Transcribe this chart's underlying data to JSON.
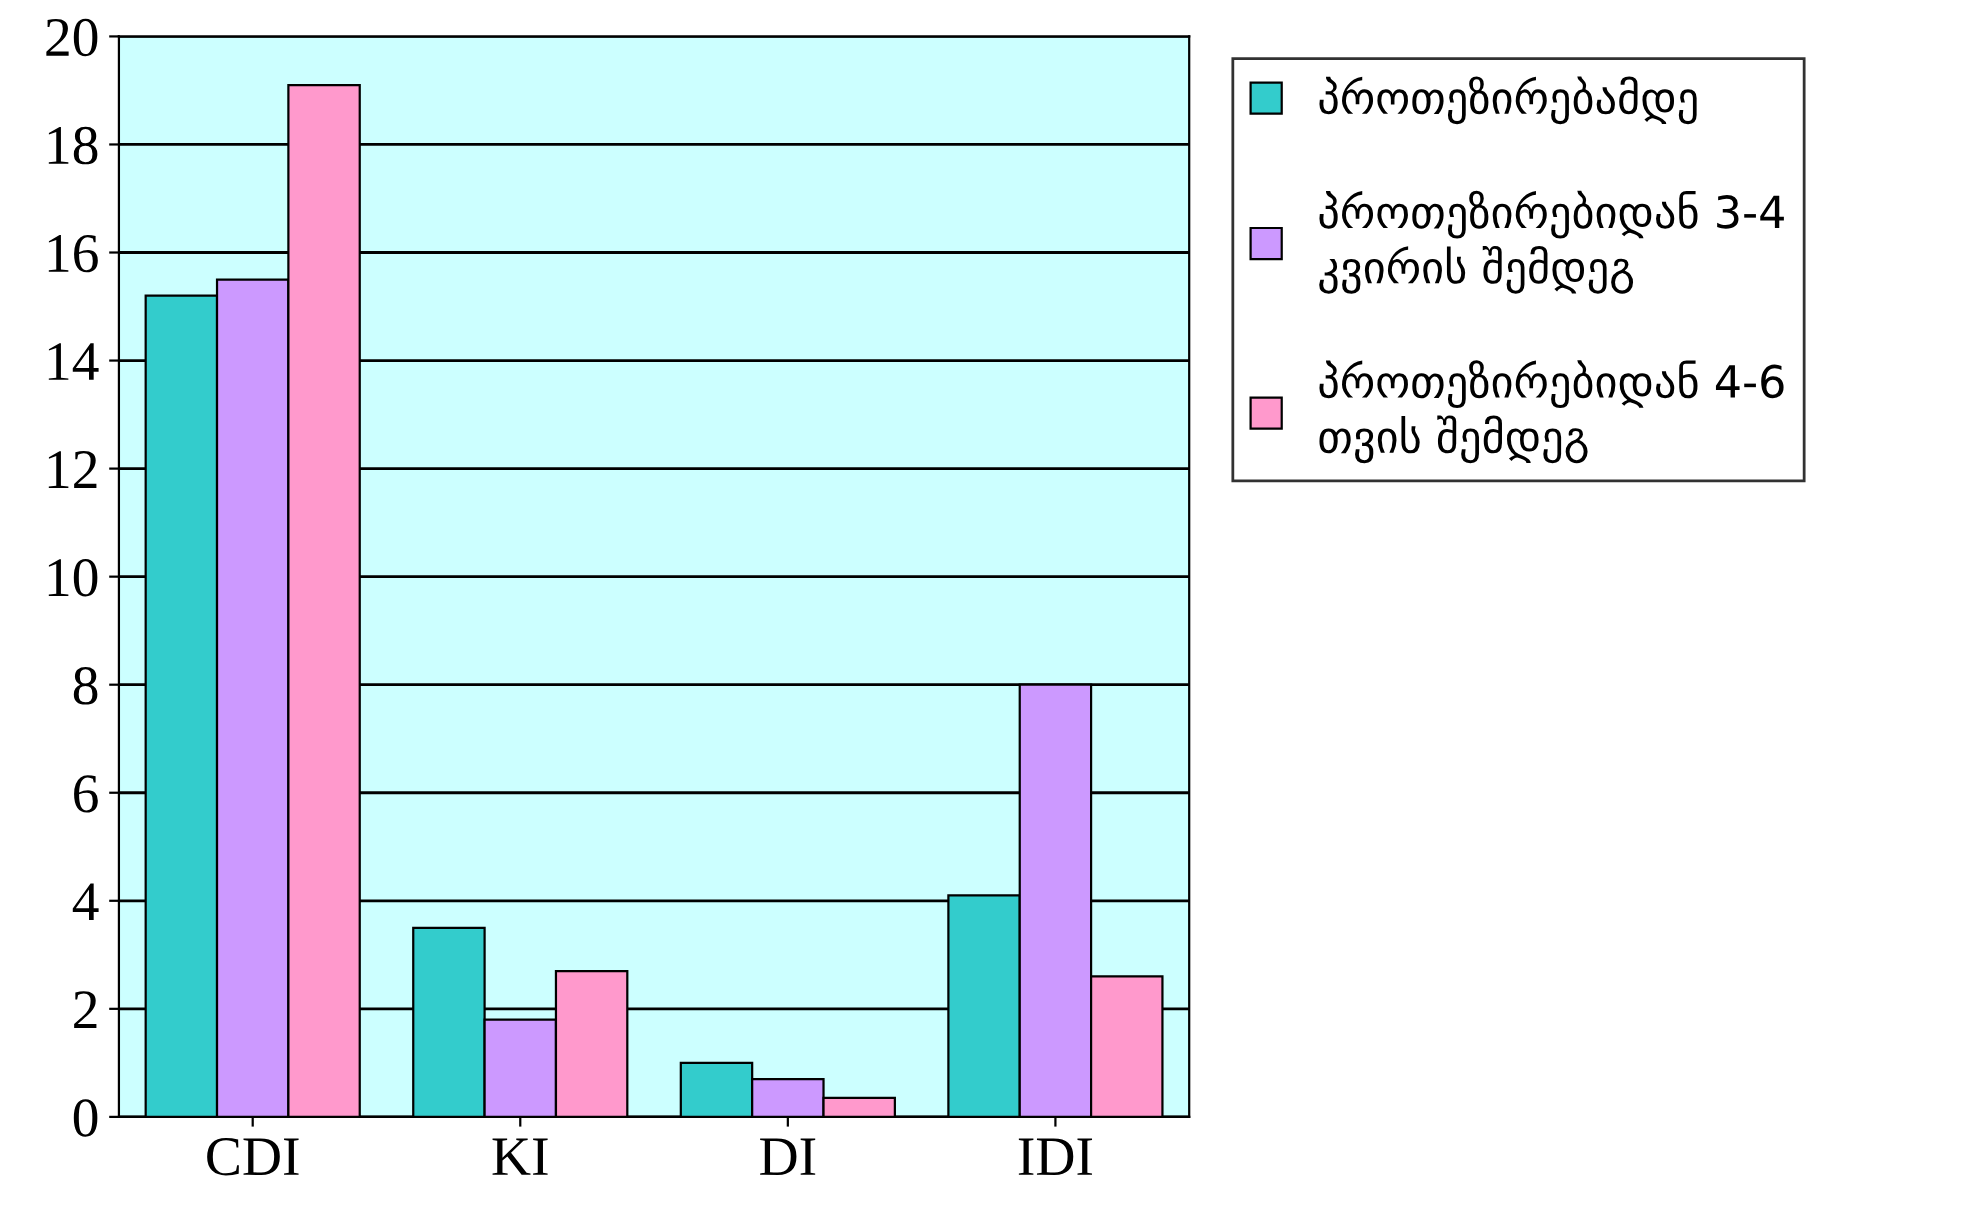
{
  "chart_data": {
    "type": "bar",
    "categories": [
      "CDI",
      "KI",
      "DI",
      "IDI"
    ],
    "series": [
      {
        "name": "პროთეზირებამდე",
        "color": "#33cccc",
        "values": [
          15.2,
          3.5,
          1.0,
          4.1
        ]
      },
      {
        "name": "პროთეზირებიდან 3-4 კვირის შემდეგ",
        "color": "#cc99ff",
        "values": [
          15.5,
          1.8,
          0.7,
          8.0
        ]
      },
      {
        "name": "პროთეზირებიდან 4-6 თვის შემდეგ",
        "color": "#ff99cc",
        "values": [
          19.1,
          2.7,
          0.35,
          2.6
        ]
      }
    ],
    "ylim": [
      0,
      20
    ],
    "yticks": [
      0,
      2,
      4,
      6,
      8,
      10,
      12,
      14,
      16,
      18,
      20
    ],
    "grid": "y",
    "legend": "right"
  }
}
